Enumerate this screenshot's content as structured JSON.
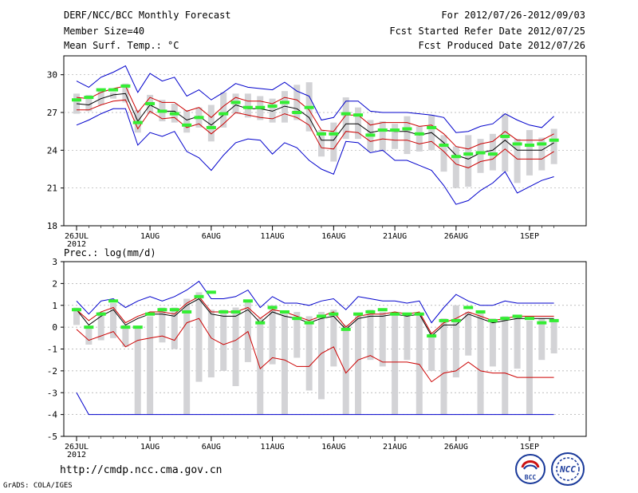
{
  "header": {
    "line1_left": "DERF/NCC/BCC Monthly Forecast",
    "line2_left": "Member Size=40",
    "line3_left": "Mean Surf. Temp.: °C",
    "line1_right": "For 2012/07/26-2012/09/03",
    "line2_right": "Fcst Started Refer Date 2012/07/25",
    "line3_right": "Fcst Produced Date 2012/07/26"
  },
  "footer": {
    "url": "http://cmdp.ncc.cma.gov.cn",
    "grads": "GrADS: COLA/IGES",
    "logo_bcc": "BCC",
    "logo_ncc": "NCC"
  },
  "colors": {
    "mean": "#000000",
    "envelope": "#0000cc",
    "spread": "#cc0000",
    "box": "#d3d3d6",
    "median": "#33ee33",
    "grid": "#aaaaaa"
  },
  "chart_data": [
    {
      "type": "line",
      "title": "Mean Surf. Temp.: °C",
      "xlabel": "",
      "ylabel": "",
      "x_ticks": [
        "26JUL",
        "1AUG",
        "6AUG",
        "11AUG",
        "16AUG",
        "21AUG",
        "26AUG",
        "1SEP"
      ],
      "x_tick_days": [
        1,
        7,
        12,
        17,
        22,
        27,
        32,
        38
      ],
      "x_sublabel": "2012",
      "y_ticks": [
        18,
        21,
        24,
        27,
        30
      ],
      "ylim": [
        18,
        31.5
      ],
      "x_days": [
        1,
        2,
        3,
        4,
        5,
        6,
        7,
        8,
        9,
        10,
        11,
        12,
        13,
        14,
        15,
        16,
        17,
        18,
        19,
        20,
        21,
        22,
        23,
        24,
        25,
        26,
        27,
        28,
        29,
        30,
        31,
        32,
        33,
        34,
        35,
        36,
        37,
        38,
        39,
        40
      ],
      "series": [
        {
          "name": "ensemble mean",
          "values": [
            27.7,
            27.6,
            28.1,
            28.4,
            28.5,
            26.3,
            27.6,
            27.1,
            27.1,
            26.4,
            26.7,
            26.0,
            26.8,
            27.6,
            27.3,
            27.3,
            27.1,
            27.5,
            27.3,
            26.6,
            24.8,
            24.8,
            26.1,
            26.1,
            25.4,
            25.6,
            25.5,
            25.5,
            25.2,
            25.4,
            24.6,
            23.6,
            23.3,
            23.8,
            24.0,
            24.8,
            24.0,
            24.0,
            24.0,
            24.6
          ]
        },
        {
          "name": "maximum",
          "values": [
            29.5,
            29.0,
            29.8,
            30.2,
            30.7,
            28.6,
            30.1,
            29.5,
            29.8,
            28.3,
            28.8,
            28.0,
            28.6,
            29.3,
            29.0,
            28.9,
            28.8,
            29.4,
            28.7,
            28.3,
            26.4,
            26.6,
            27.9,
            27.9,
            27.1,
            27.0,
            27.0,
            27.0,
            26.9,
            26.8,
            26.6,
            25.4,
            25.5,
            25.9,
            26.1,
            26.9,
            26.4,
            26.0,
            25.8,
            26.7
          ]
        },
        {
          "name": "minimum",
          "values": [
            26.0,
            26.4,
            26.9,
            27.3,
            27.3,
            24.4,
            25.4,
            25.1,
            25.5,
            23.9,
            23.4,
            22.4,
            23.6,
            24.6,
            24.9,
            24.8,
            23.7,
            24.6,
            24.2,
            23.2,
            22.5,
            22.1,
            24.7,
            24.6,
            23.8,
            24.0,
            23.2,
            23.2,
            22.8,
            22.4,
            21.2,
            19.7,
            20.0,
            20.8,
            21.4,
            22.3,
            20.6,
            21.1,
            21.6,
            21.9
          ]
        },
        {
          "name": "mean + std",
          "values": [
            28.2,
            28.1,
            28.6,
            28.9,
            29.1,
            27.0,
            28.2,
            27.8,
            27.8,
            27.1,
            27.4,
            26.6,
            27.5,
            28.2,
            27.9,
            27.9,
            27.7,
            28.2,
            28.0,
            27.2,
            25.6,
            25.5,
            26.8,
            26.8,
            26.0,
            26.2,
            26.2,
            26.2,
            25.9,
            26.0,
            25.3,
            24.3,
            24.1,
            24.5,
            24.7,
            25.5,
            24.8,
            24.8,
            24.8,
            25.3
          ]
        },
        {
          "name": "mean - std",
          "values": [
            27.2,
            27.2,
            27.6,
            27.9,
            28.0,
            25.7,
            27.1,
            26.5,
            26.6,
            25.8,
            26.1,
            25.3,
            26.1,
            27.0,
            26.8,
            26.6,
            26.5,
            26.9,
            26.6,
            26.0,
            24.2,
            24.1,
            25.5,
            25.4,
            24.7,
            24.9,
            24.8,
            24.8,
            24.5,
            24.7,
            23.9,
            22.9,
            22.6,
            23.1,
            23.3,
            24.1,
            23.3,
            23.3,
            23.3,
            23.9
          ]
        }
      ],
      "box_ranges": [
        [
          26.9,
          28.5
        ],
        [
          27.1,
          28.4
        ],
        [
          27.6,
          28.7
        ],
        [
          28.1,
          28.6
        ],
        [
          27.8,
          29.3
        ],
        [
          25.4,
          27.2
        ],
        [
          26.9,
          28.4
        ],
        [
          26.3,
          28.0
        ],
        [
          26.2,
          27.7
        ],
        [
          25.4,
          27.2
        ],
        [
          25.8,
          27.4
        ],
        [
          24.7,
          27.6
        ],
        [
          25.8,
          28.6
        ],
        [
          26.9,
          28.5
        ],
        [
          26.6,
          28.5
        ],
        [
          26.4,
          28.3
        ],
        [
          26.2,
          28.1
        ],
        [
          26.2,
          28.7
        ],
        [
          26.4,
          29.2
        ],
        [
          25.5,
          29.4
        ],
        [
          23.5,
          25.6
        ],
        [
          23.1,
          26.2
        ],
        [
          24.9,
          28.2
        ],
        [
          24.9,
          27.4
        ],
        [
          23.9,
          26.4
        ],
        [
          23.9,
          26.3
        ],
        [
          24.1,
          26.1
        ],
        [
          23.7,
          26.7
        ],
        [
          23.9,
          25.9
        ],
        [
          24.0,
          26.8
        ],
        [
          22.3,
          25.2
        ],
        [
          21.0,
          24.3
        ],
        [
          21.1,
          25.2
        ],
        [
          22.2,
          24.9
        ],
        [
          22.4,
          25.3
        ],
        [
          22.3,
          26.9
        ],
        [
          21.4,
          24.9
        ],
        [
          22.0,
          25.6
        ],
        [
          22.4,
          25.0
        ],
        [
          22.9,
          25.7
        ]
      ],
      "median_values": [
        28.0,
        28.2,
        28.8,
        28.8,
        29.1,
        26.2,
        27.7,
        27.1,
        26.9,
        26.0,
        26.6,
        25.8,
        26.9,
        27.8,
        27.4,
        27.4,
        27.5,
        27.8,
        27.0,
        27.4,
        25.3,
        25.3,
        26.9,
        26.8,
        25.2,
        25.6,
        25.6,
        25.7,
        25.3,
        25.8,
        24.4,
        23.5,
        23.7,
        23.8,
        23.7,
        25.1,
        24.5,
        24.4,
        24.5,
        24.8
      ]
    },
    {
      "type": "line",
      "title": "Prec.: log(mm/d)",
      "xlabel": "",
      "ylabel": "",
      "x_ticks": [
        "26JUL",
        "1AUG",
        "6AUG",
        "11AUG",
        "16AUG",
        "21AUG",
        "26AUG",
        "1SEP"
      ],
      "x_tick_days": [
        1,
        7,
        12,
        17,
        22,
        27,
        32,
        38
      ],
      "x_sublabel": "2012",
      "y_ticks": [
        -5,
        -4,
        -3,
        -2,
        -1,
        0,
        1,
        2,
        3
      ],
      "ylim": [
        -5,
        3
      ],
      "x_days": [
        1,
        2,
        3,
        4,
        5,
        6,
        7,
        8,
        9,
        10,
        11,
        12,
        13,
        14,
        15,
        16,
        17,
        18,
        19,
        20,
        21,
        22,
        23,
        24,
        25,
        26,
        27,
        28,
        29,
        30,
        31,
        32,
        33,
        34,
        35,
        36,
        37,
        38,
        39,
        40
      ],
      "series": [
        {
          "name": "ensemble mean",
          "values": [
            0.8,
            0.1,
            0.5,
            0.8,
            0.1,
            0.4,
            0.6,
            0.6,
            0.5,
            1.0,
            1.3,
            0.6,
            0.5,
            0.5,
            0.8,
            0.2,
            0.7,
            0.5,
            0.4,
            0.2,
            0.4,
            0.5,
            -0.1,
            0.4,
            0.5,
            0.5,
            0.6,
            0.5,
            0.6,
            -0.4,
            0.1,
            0.1,
            0.6,
            0.4,
            0.2,
            0.3,
            0.4,
            0.4,
            0.4,
            0.4
          ]
        },
        {
          "name": "maximum",
          "values": [
            1.2,
            0.6,
            1.2,
            1.3,
            0.9,
            1.2,
            1.4,
            1.2,
            1.4,
            1.7,
            2.1,
            1.3,
            1.3,
            1.4,
            1.7,
            0.9,
            1.4,
            1.1,
            1.1,
            1.0,
            1.2,
            1.3,
            0.8,
            1.4,
            1.3,
            1.2,
            1.2,
            1.1,
            1.2,
            0.2,
            0.9,
            1.5,
            1.2,
            1.0,
            1.0,
            1.2,
            1.1,
            1.1,
            1.1,
            1.1
          ]
        },
        {
          "name": "minimum",
          "values": [
            -3.0,
            -4.0,
            -4.0,
            -4.0,
            -4.0,
            -4.0,
            -4.0,
            -4.0,
            -4.0,
            -4.0,
            -4.0,
            -4.0,
            -4.0,
            -4.0,
            -4.0,
            -4.0,
            -4.0,
            -4.0,
            -4.0,
            -4.0,
            -4.0,
            -4.0,
            -4.0,
            -4.0,
            -4.0,
            -4.0,
            -4.0,
            -4.0,
            -4.0,
            -4.0,
            -4.0,
            -4.0,
            -4.0,
            -4.0,
            -4.0,
            -4.0,
            -4.0,
            -4.0,
            -4.0,
            -4.0
          ]
        },
        {
          "name": "mean + std",
          "values": [
            0.8,
            0.3,
            0.7,
            0.9,
            0.2,
            0.5,
            0.7,
            0.7,
            0.6,
            1.1,
            1.4,
            0.7,
            0.7,
            0.7,
            0.9,
            0.4,
            0.8,
            0.7,
            0.5,
            0.3,
            0.5,
            0.7,
            0.0,
            0.5,
            0.6,
            0.6,
            0.7,
            0.6,
            0.7,
            -0.3,
            0.2,
            0.4,
            0.7,
            0.5,
            0.3,
            0.4,
            0.5,
            0.5,
            0.5,
            0.5
          ]
        },
        {
          "name": "mean - std",
          "values": [
            -0.1,
            -0.6,
            -0.4,
            -0.2,
            -0.9,
            -0.6,
            -0.5,
            -0.4,
            -0.6,
            0.2,
            0.4,
            -0.5,
            -0.8,
            -0.6,
            -0.2,
            -1.9,
            -1.4,
            -1.5,
            -1.8,
            -1.8,
            -1.2,
            -0.9,
            -2.1,
            -1.5,
            -1.3,
            -1.6,
            -1.6,
            -1.6,
            -1.7,
            -2.5,
            -2.1,
            -2.0,
            -1.6,
            -2.0,
            -2.1,
            -2.1,
            -2.3,
            -2.3,
            -2.3,
            -2.3
          ]
        }
      ],
      "box_ranges": [
        [
          0.1,
          0.9
        ],
        [
          -0.8,
          0.0
        ],
        [
          -0.6,
          0.7
        ],
        [
          -0.5,
          1.1
        ],
        [
          -0.9,
          0.1
        ],
        [
          -4.0,
          0.0
        ],
        [
          -4.0,
          0.5
        ],
        [
          -0.7,
          0.9
        ],
        [
          -1.0,
          0.9
        ],
        [
          -4.0,
          1.3
        ],
        [
          -2.5,
          1.6
        ],
        [
          -2.3,
          0.8
        ],
        [
          -2.0,
          0.8
        ],
        [
          -2.7,
          0.9
        ],
        [
          -1.6,
          1.2
        ],
        [
          -4.0,
          0.4
        ],
        [
          -1.7,
          1.0
        ],
        [
          -4.0,
          0.7
        ],
        [
          -1.4,
          0.7
        ],
        [
          -2.9,
          0.5
        ],
        [
          -3.3,
          0.7
        ],
        [
          -1.8,
          0.8
        ],
        [
          -4.0,
          0.1
        ],
        [
          -4.0,
          0.6
        ],
        [
          -1.5,
          0.8
        ],
        [
          -1.8,
          0.7
        ],
        [
          -4.0,
          0.7
        ],
        [
          -1.5,
          0.6
        ],
        [
          -4.0,
          0.6
        ],
        [
          -2.0,
          -0.3
        ],
        [
          -4.0,
          0.4
        ],
        [
          -2.3,
          1.0
        ],
        [
          -1.3,
          0.7
        ],
        [
          -4.0,
          0.7
        ],
        [
          -1.8,
          0.4
        ],
        [
          -4.0,
          0.5
        ],
        [
          -1.9,
          0.5
        ],
        [
          -4.0,
          0.3
        ],
        [
          -1.5,
          0.4
        ],
        [
          -1.2,
          0.3
        ]
      ],
      "median_values": [
        0.8,
        0.0,
        0.6,
        1.2,
        0.0,
        0.0,
        0.6,
        0.8,
        0.8,
        0.7,
        1.4,
        1.6,
        0.7,
        0.7,
        1.2,
        0.2,
        0.9,
        0.7,
        0.4,
        0.2,
        0.5,
        0.6,
        -0.1,
        0.6,
        0.7,
        0.8,
        0.6,
        0.6,
        0.6,
        -0.4,
        0.3,
        0.3,
        0.9,
        0.7,
        0.3,
        0.4,
        0.5,
        0.4,
        0.2,
        0.3
      ]
    }
  ]
}
